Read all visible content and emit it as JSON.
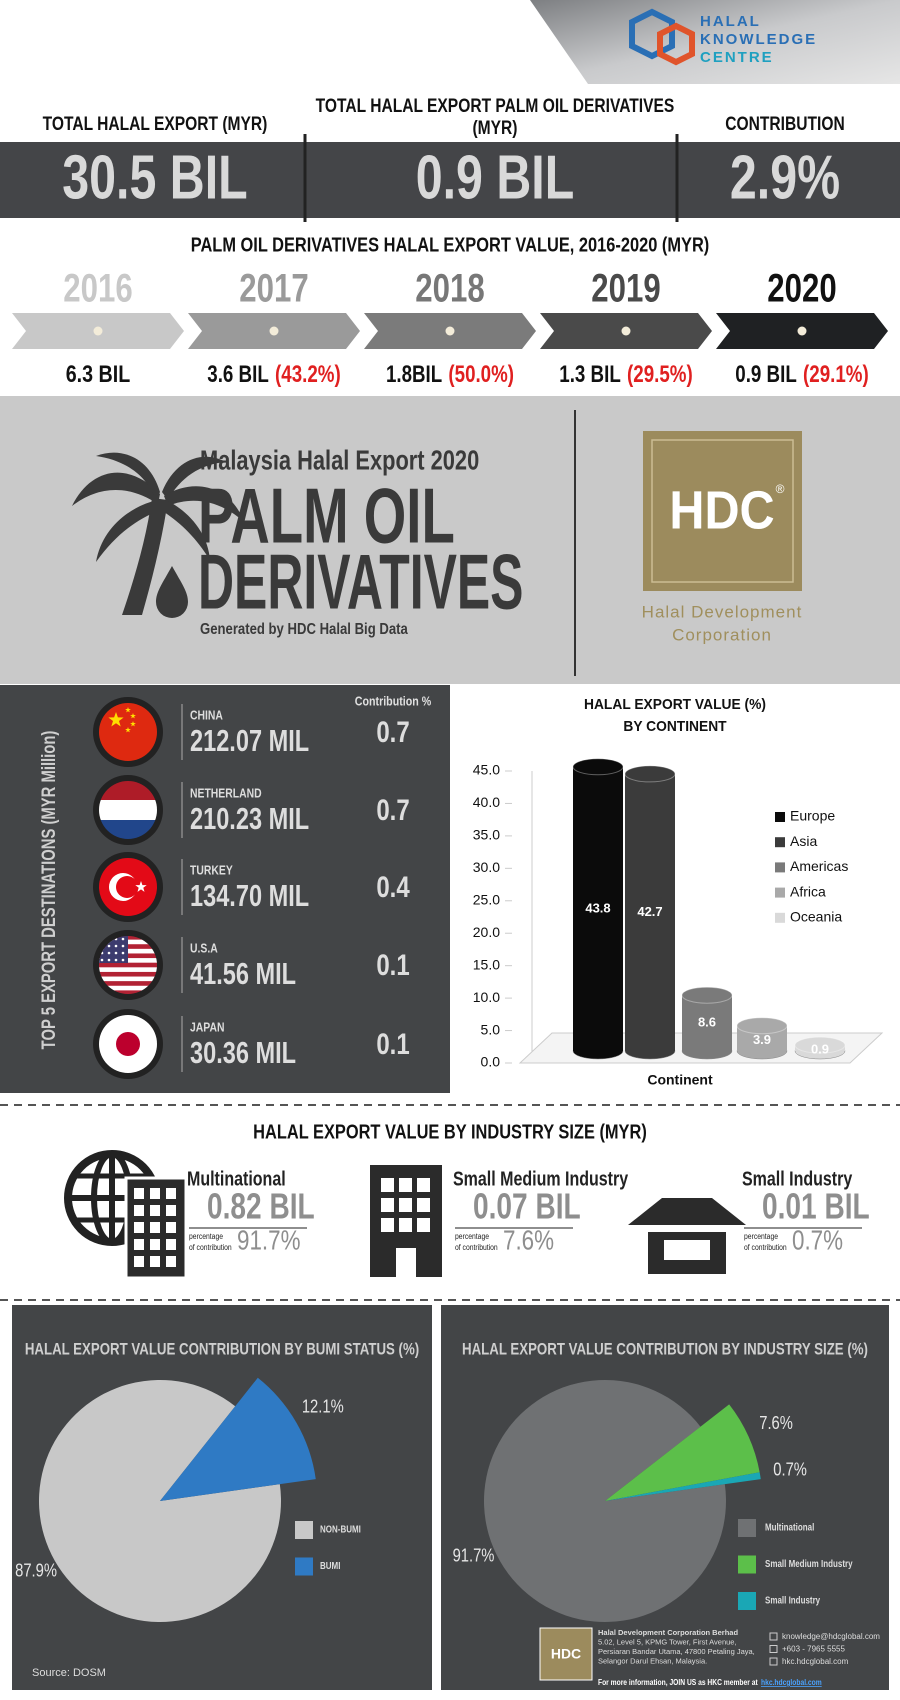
{
  "header": {
    "brand_lines": [
      "HALAL",
      "KNOWLEDGE",
      "CENTRE"
    ]
  },
  "stats": [
    {
      "label_lines": [
        "TOTAL HALAL EXPORT (MYR)"
      ],
      "value": "30.5 BIL"
    },
    {
      "label_lines": [
        "TOTAL HALAL EXPORT PALM OIL DERIVATIVES",
        "(MYR)"
      ],
      "value": "0.9 BIL"
    },
    {
      "label_lines": [
        "CONTRIBUTION"
      ],
      "value": "2.9%"
    }
  ],
  "timeline": {
    "title": "PALM OIL DERIVATIVES HALAL EXPORT VALUE, 2016-2020 (MYR)",
    "items": [
      {
        "year": "2016",
        "value": "6.3 BIL"
      },
      {
        "year": "2017",
        "value": "3.6 BIL",
        "change": "(43.2%)"
      },
      {
        "year": "2018",
        "value": "1.8BIL",
        "change": "(50.0%)"
      },
      {
        "year": "2019",
        "value": "1.3 BIL",
        "change": "(29.5%)"
      },
      {
        "year": "2020",
        "value": "0.9 BIL",
        "change": "(29.1%)"
      }
    ]
  },
  "banner": {
    "subtitle": "Malaysia Halal Export 2020",
    "title_lines": [
      "PALM OIL",
      "DERIVATIVES"
    ],
    "note": "Generated by HDC Halal Big Data",
    "logo": "HDC",
    "logo_mark": "®",
    "org_lines": [
      "Halal Development",
      "Corporation"
    ]
  },
  "destinations": {
    "axis_label": "TOP 5 EXPORT DESTINATIONS (MYR Million)",
    "column": "Contribution %",
    "rows": [
      {
        "country": "CHINA",
        "value": "212.07 MIL",
        "share": "0.7"
      },
      {
        "country": "NETHERLAND",
        "value": "210.23 MIL",
        "share": "0.7"
      },
      {
        "country": "TURKEY",
        "value": "134.70 MIL",
        "share": "0.4"
      },
      {
        "country": "U.S.A",
        "value": "41.56 MIL",
        "share": "0.1"
      },
      {
        "country": "JAPAN",
        "value": "30.36 MIL",
        "share": "0.1"
      }
    ]
  },
  "industry": {
    "title": "HALAL EXPORT VALUE BY INDUSTRY SIZE (MYR)",
    "caption_lines": [
      "percentage",
      "of contribution"
    ],
    "items": [
      {
        "name": "Multinational",
        "value": "0.82 BIL",
        "share": "91.7%"
      },
      {
        "name": "Small Medium Industry",
        "value": "0.07 BIL",
        "share": "7.6%"
      },
      {
        "name": "Small Industry",
        "value": "0.01 BIL",
        "share": "0.7%"
      }
    ]
  },
  "chart_data": [
    {
      "type": "bar",
      "title_lines": [
        "HALAL EXPORT VALUE (%)",
        "BY CONTINENT"
      ],
      "xlabel": "Continent",
      "categories": [
        "Europe",
        "Asia",
        "Americas",
        "Africa",
        "Oceania"
      ],
      "values": [
        43.8,
        42.7,
        8.6,
        3.9,
        0.9
      ],
      "colors": [
        "#0b0b0b",
        "#3b3b3b",
        "#7a7a7a",
        "#a9a9a9",
        "#d9d9d9"
      ],
      "ylim": [
        0,
        45
      ],
      "yticks": [
        {
          "value": 0,
          "label": "0.0"
        },
        {
          "value": 5,
          "label": "5.0"
        },
        {
          "value": 10,
          "label": "10.0"
        },
        {
          "value": 15,
          "label": "15.0"
        },
        {
          "value": 20,
          "label": "20.0"
        },
        {
          "value": 25,
          "label": "25.0"
        },
        {
          "value": 30,
          "label": "30.0"
        },
        {
          "value": 35,
          "label": "35.0"
        },
        {
          "value": 40,
          "label": "40.0"
        },
        {
          "value": 45,
          "label": "45.0"
        }
      ],
      "legend": "right"
    },
    {
      "type": "pie",
      "title": "HALAL EXPORT VALUE CONTRIBUTION BY BUMI STATUS (%)",
      "categories": [
        "NON-BUMI",
        "BUMI"
      ],
      "values": [
        87.9,
        12.1
      ],
      "value_labels": [
        "87.9%",
        "12.1%"
      ],
      "colors": [
        "#c8c8c8",
        "#2f7ac4"
      ]
    },
    {
      "type": "pie",
      "title": "HALAL EXPORT VALUE CONTRIBUTION BY INDUSTRY SIZE (%)",
      "categories": [
        "Multinational",
        "Small Medium Industry",
        "Small Industry"
      ],
      "values": [
        91.7,
        7.6,
        0.7
      ],
      "value_labels": [
        "91.7%",
        "7.6%",
        "0.7%"
      ],
      "colors": [
        "#6f7173",
        "#5cbf4a",
        "#1aa7b5"
      ]
    }
  ],
  "footer": {
    "source": "Source: DOSM",
    "address_lines": [
      "Halal Development Corporation Berhad",
      "5.02, Level 5, KPMG Tower, First Avenue,",
      "Persiaran Bandar Utama, 47800 Petaling Jaya,",
      "Selangor Darul Ehsan, Malaysia."
    ],
    "logo": "HDC",
    "contacts": [
      "knowledge@hdcglobal.com",
      "+603 - 7965 5555",
      "hkc.hdcglobal.com"
    ],
    "more": "For more information, JOIN US as HKC member at",
    "link": "hkc.hdcglobal.com"
  }
}
